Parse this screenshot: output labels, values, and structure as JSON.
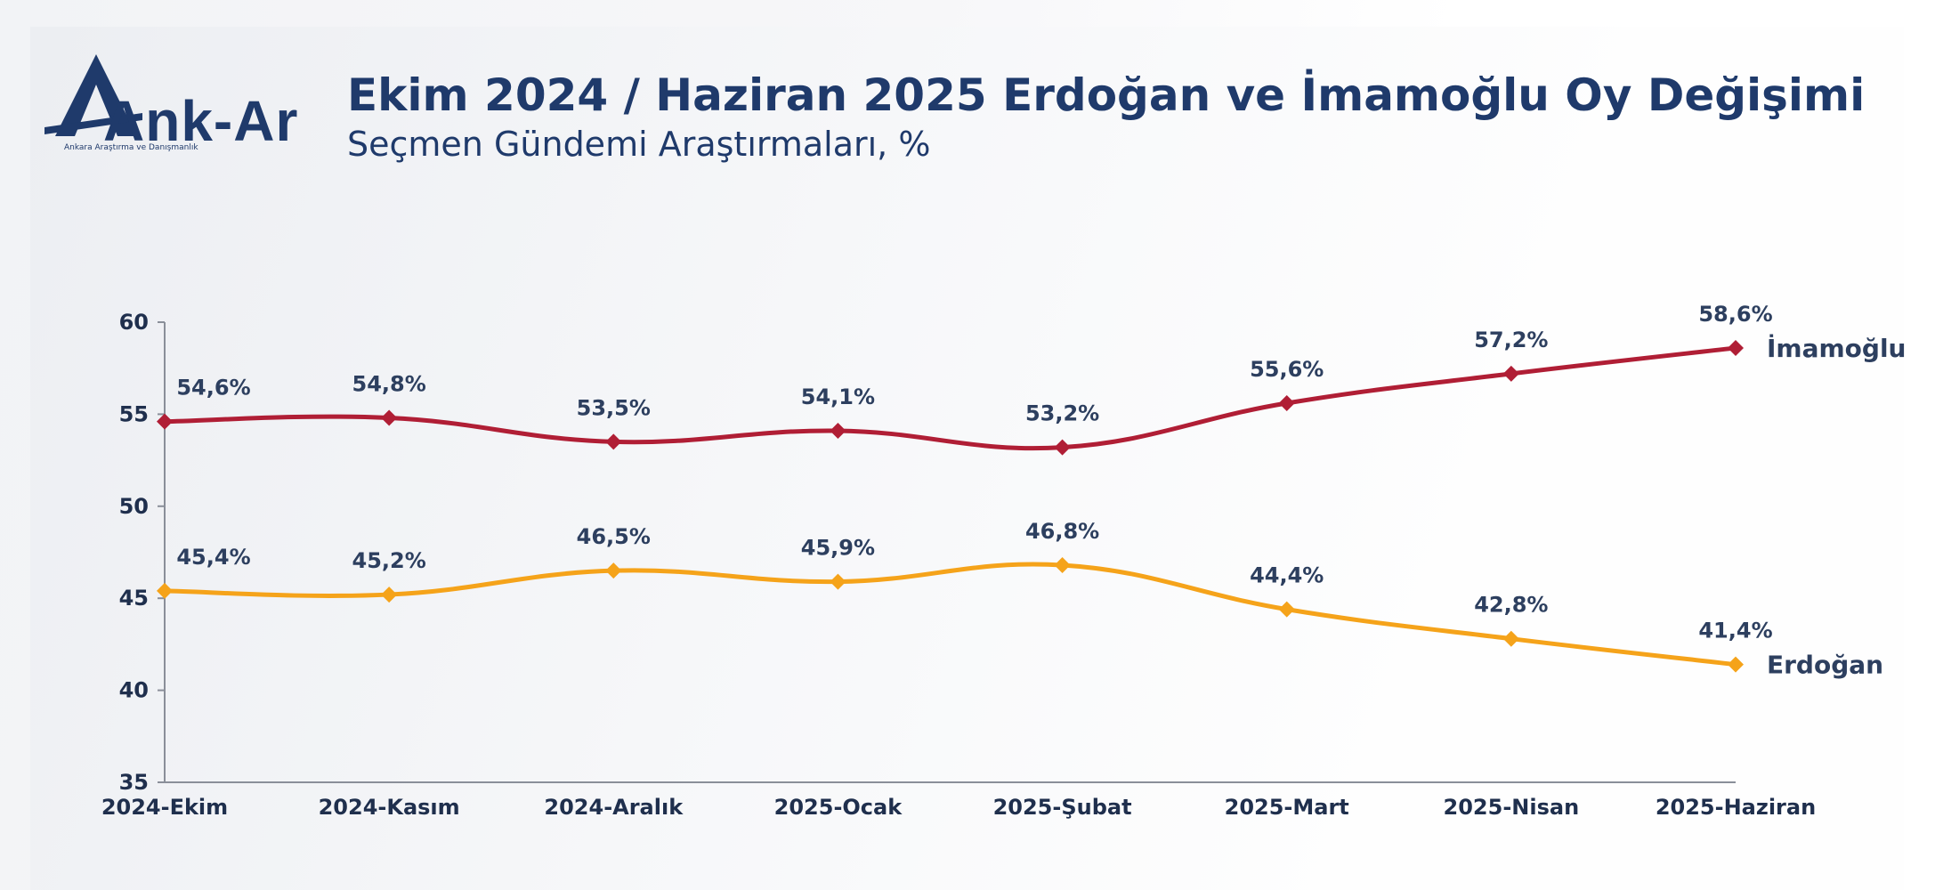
{
  "header": {
    "logo_text": "Ank-Ar",
    "logo_subtext": "Ankara Araştırma ve Danışmanlık",
    "title": "Ekim 2024 / Haziran 2025 Erdoğan ve İmamoğlu Oy Değişimi",
    "subtitle": "Seçmen Gündemi Araştırmaları, %"
  },
  "colors": {
    "title": "#1f3a6b",
    "imamoglu": "#b01e35",
    "erdogan": "#f5a31a",
    "axis": "#1f2f4d"
  },
  "chart_data": {
    "type": "line",
    "categories": [
      "2024-Ekim",
      "2024-Kasım",
      "2024-Aralık",
      "2025-Ocak",
      "2025-Şubat",
      "2025-Mart",
      "2025-Nisan",
      "2025-Haziran"
    ],
    "ylim": [
      35,
      60
    ],
    "yticks": [
      35,
      40,
      45,
      50,
      55,
      60
    ],
    "grid": false,
    "series": [
      {
        "name": "İmamoğlu",
        "color": "#b01e35",
        "values": [
          54.6,
          54.8,
          53.5,
          54.1,
          53.2,
          55.6,
          57.2,
          58.6
        ],
        "labels": [
          "54,6%",
          "54,8%",
          "53,5%",
          "54,1%",
          "53,2%",
          "55,6%",
          "57,2%",
          "58,6%"
        ]
      },
      {
        "name": "Erdoğan",
        "color": "#f5a31a",
        "values": [
          45.4,
          45.2,
          46.5,
          45.9,
          46.8,
          44.4,
          42.8,
          41.4
        ],
        "labels": [
          "45,4%",
          "45,2%",
          "46,5%",
          "45,9%",
          "46,8%",
          "44,4%",
          "42,8%",
          "41,4%"
        ]
      }
    ]
  }
}
